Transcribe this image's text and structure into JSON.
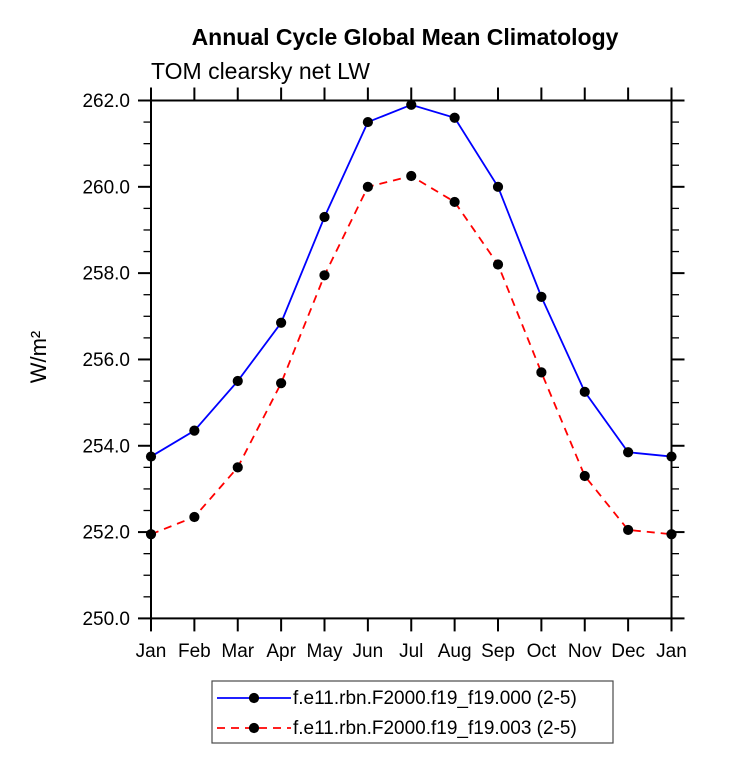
{
  "chart_data": {
    "type": "line",
    "title": "Annual Cycle Global Mean Climatology",
    "subtitle": "TOM clearsky net LW",
    "ylabel": "W/m²",
    "xlabel": "",
    "categories": [
      "Jan",
      "Feb",
      "Mar",
      "Apr",
      "May",
      "Jun",
      "Jul",
      "Aug",
      "Sep",
      "Oct",
      "Nov",
      "Dec",
      "Jan"
    ],
    "series": [
      {
        "name": "f.e11.rbn.F2000.f19_f19.000 (2-5)",
        "color": "#0000ff",
        "line_style": "solid",
        "marker": "filled-circle",
        "marker_color": "#000000",
        "values": [
          253.75,
          254.35,
          255.5,
          256.85,
          259.3,
          261.5,
          261.9,
          261.6,
          260.0,
          257.45,
          255.25,
          253.85,
          253.75
        ]
      },
      {
        "name": "f.e11.rbn.F2000.f19_f19.003 (2-5)",
        "color": "#ff0000",
        "line_style": "dashed",
        "marker": "filled-circle",
        "marker_color": "#000000",
        "values": [
          251.95,
          252.35,
          253.5,
          255.45,
          257.95,
          260.0,
          260.25,
          259.65,
          258.2,
          255.7,
          253.3,
          252.05,
          251.95
        ]
      }
    ],
    "ylim": [
      250.0,
      262.0
    ],
    "ytick_values": [
      250,
      252,
      254,
      256,
      258,
      260,
      262
    ],
    "ytick_labels": [
      "250.0",
      "252.0",
      "254.0",
      "256.0",
      "258.0",
      "260.0",
      "262.0"
    ],
    "yminor_interval": 0.5,
    "grid": false,
    "axis_color": "#000000",
    "background_color": "#ffffff",
    "legend_position": "bottom"
  }
}
